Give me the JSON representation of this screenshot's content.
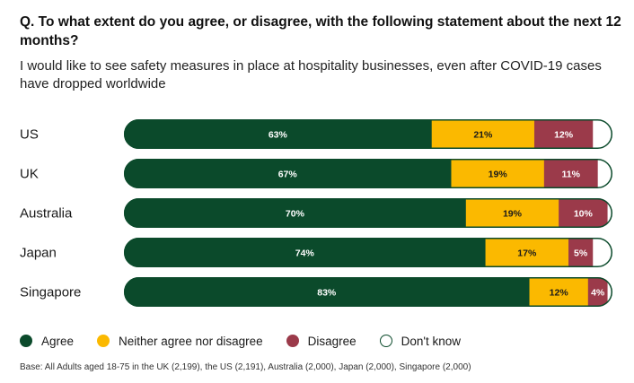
{
  "question": "Q. To what extent do you agree, or disagree, with the following statement about the next 12 months?",
  "statement": "I would like to see safety measures in place at hospitality businesses, even after COVID-19 cases have dropped worldwide",
  "base_note": "Base: All Adults aged 18-75 in the UK (2,199), the US (2,191), Australia (2,000), Japan (2,000), Singapore (2,000)",
  "colors": {
    "agree": "#0b4a2b",
    "neither": "#fbb900",
    "disagree": "#9b3a4a",
    "dont_know": "#ffffff",
    "outline": "#0b4a2b"
  },
  "chart_data": {
    "type": "bar",
    "orientation": "horizontal",
    "stacked": true,
    "categories": [
      "US",
      "UK",
      "Australia",
      "Japan",
      "Singapore"
    ],
    "series": [
      {
        "name": "Agree",
        "values": [
          63,
          67,
          70,
          74,
          83
        ],
        "labels": [
          "63%",
          "67%",
          "70%",
          "74%",
          "83%"
        ]
      },
      {
        "name": "Neither agree nor disagree",
        "values": [
          21,
          19,
          19,
          17,
          12
        ],
        "labels": [
          "21%",
          "19%",
          "19%",
          "17%",
          "12%"
        ]
      },
      {
        "name": "Disagree",
        "values": [
          12,
          11,
          10,
          5,
          4
        ],
        "labels": [
          "12%",
          "11%",
          "10%",
          "5%",
          "4%"
        ]
      },
      {
        "name": "Don't know",
        "values": [
          4,
          3,
          1,
          4,
          1
        ],
        "labels": [
          "",
          "",
          "",
          "",
          ""
        ]
      }
    ],
    "xlim": [
      0,
      100
    ],
    "legend": "bottom"
  }
}
